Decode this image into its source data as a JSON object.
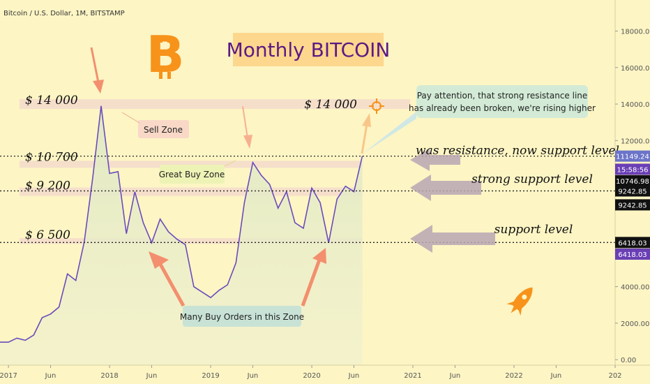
{
  "header": {
    "symbol_line": "Bitcoin / U.S. Dollar, 1M, BITSTAMP"
  },
  "title": "Monthly BITCOIN",
  "colors": {
    "background": "#fdf5c4",
    "price_line": "#6a4bbd",
    "area_fill": "#e3ecc4",
    "zone_band": "#f1d6cf",
    "arrow_salmon": "#f38f6e",
    "arrow_gray": "#b8a6b3",
    "bitcoin_orange": "#f7931a",
    "badge_black": "#111111",
    "badge_purple": "#6a3fb5",
    "badge_blue": "#6b74c9"
  },
  "annotations": {
    "sell_zone": "Sell Zone",
    "great_buy_zone": "Great Buy Zone",
    "many_buy_orders": "Many Buy Orders in this Zone",
    "pay_attention_line1": "Pay attention, that strong resistance line",
    "pay_attention_line2": "has already been broken, we're rising higher",
    "was_resistance": "was resistance, now support level",
    "strong_support": "strong support level",
    "support": "support level"
  },
  "icons": {
    "bitcoin": "bitcoin-logo-icon",
    "rocket": "rocket-icon",
    "target": "crosshair-target-icon"
  },
  "chart_data": {
    "type": "line",
    "title": "Monthly BITCOIN",
    "xlabel": "",
    "ylabel": "",
    "ylim": [
      -300,
      19700
    ],
    "xlim": [
      "2016-12",
      "2023-01"
    ],
    "x_ticks": [
      {
        "date": "2017-01",
        "label": "2017"
      },
      {
        "date": "2017-06",
        "label": "Jun"
      },
      {
        "date": "2018-01",
        "label": "2018"
      },
      {
        "date": "2018-06",
        "label": "Jun"
      },
      {
        "date": "2019-01",
        "label": "2019"
      },
      {
        "date": "2019-06",
        "label": "Jun"
      },
      {
        "date": "2020-01",
        "label": "2020"
      },
      {
        "date": "2020-06",
        "label": "Jun"
      },
      {
        "date": "2021-01",
        "label": "2021"
      },
      {
        "date": "2021-06",
        "label": "Jun"
      },
      {
        "date": "2022-01",
        "label": "2022"
      },
      {
        "date": "2022-06",
        "label": "Jun"
      },
      {
        "date": "2023-01",
        "label": "202"
      }
    ],
    "y_ticks": [
      {
        "value": 18000,
        "label": "18000.00"
      },
      {
        "value": 16000,
        "label": "16000.00"
      },
      {
        "value": 14000,
        "label": "14000.00"
      },
      {
        "value": 12000,
        "label": "12000.00"
      },
      {
        "value": 4000,
        "label": "4000.00"
      },
      {
        "value": 2000,
        "label": "2000.00"
      },
      {
        "value": 0,
        "label": "0.00"
      }
    ],
    "series": [
      {
        "x": [
          "2016-12",
          "2017-01",
          "2017-02",
          "2017-03",
          "2017-04",
          "2017-05",
          "2017-06",
          "2017-07",
          "2017-08",
          "2017-09",
          "2017-10",
          "2017-11",
          "2017-12",
          "2018-01",
          "2018-02",
          "2018-03",
          "2018-04",
          "2018-05",
          "2018-06",
          "2018-07",
          "2018-08",
          "2018-09",
          "2018-10",
          "2018-11",
          "2018-12",
          "2019-01",
          "2019-02",
          "2019-03",
          "2019-04",
          "2019-05",
          "2019-06",
          "2019-07",
          "2019-08",
          "2019-09",
          "2019-10",
          "2019-11",
          "2019-12",
          "2020-01",
          "2020-02",
          "2020-03",
          "2020-04",
          "2020-05",
          "2020-06",
          "2020-07"
        ],
        "y": [
          960,
          960,
          1180,
          1060,
          1350,
          2300,
          2500,
          2880,
          4700,
          4340,
          6450,
          9950,
          13900,
          10200,
          10300,
          6900,
          9200,
          7500,
          6400,
          7700,
          7000,
          6600,
          6300,
          4000,
          3700,
          3400,
          3800,
          4100,
          5300,
          8600,
          10800,
          10100,
          9600,
          8300,
          9200,
          7500,
          7200,
          9400,
          8600,
          6400,
          8800,
          9500,
          9200,
          11149.24
        ]
      }
    ],
    "levels": [
      {
        "value": 14000,
        "label": "$ 14 000",
        "label_right": "$ 14 000"
      },
      {
        "value": 10700,
        "label": "$ 10 700"
      },
      {
        "value": 9200,
        "label": "$ 9 200"
      },
      {
        "value": 6500,
        "label": "$ 6 500"
      }
    ],
    "price_badges": [
      {
        "value": 11149.24,
        "label": "11149.24",
        "color": "#6b74c9"
      },
      {
        "value": 10430,
        "label": "15:58:56",
        "color": "#6a3fb5"
      },
      {
        "value": 9800,
        "label": "10746.98",
        "color": "#111111"
      },
      {
        "value": 9242.85,
        "label": "9242.85",
        "color": "#111111"
      },
      {
        "value": 8480,
        "label": "9242.85",
        "color": "#111111"
      },
      {
        "value": 6418.03,
        "label": "6418.03",
        "color": "#111111"
      },
      {
        "value": 5780,
        "label": "6418.03",
        "color": "#6a3fb5"
      }
    ],
    "grid": false,
    "legend": "none"
  }
}
